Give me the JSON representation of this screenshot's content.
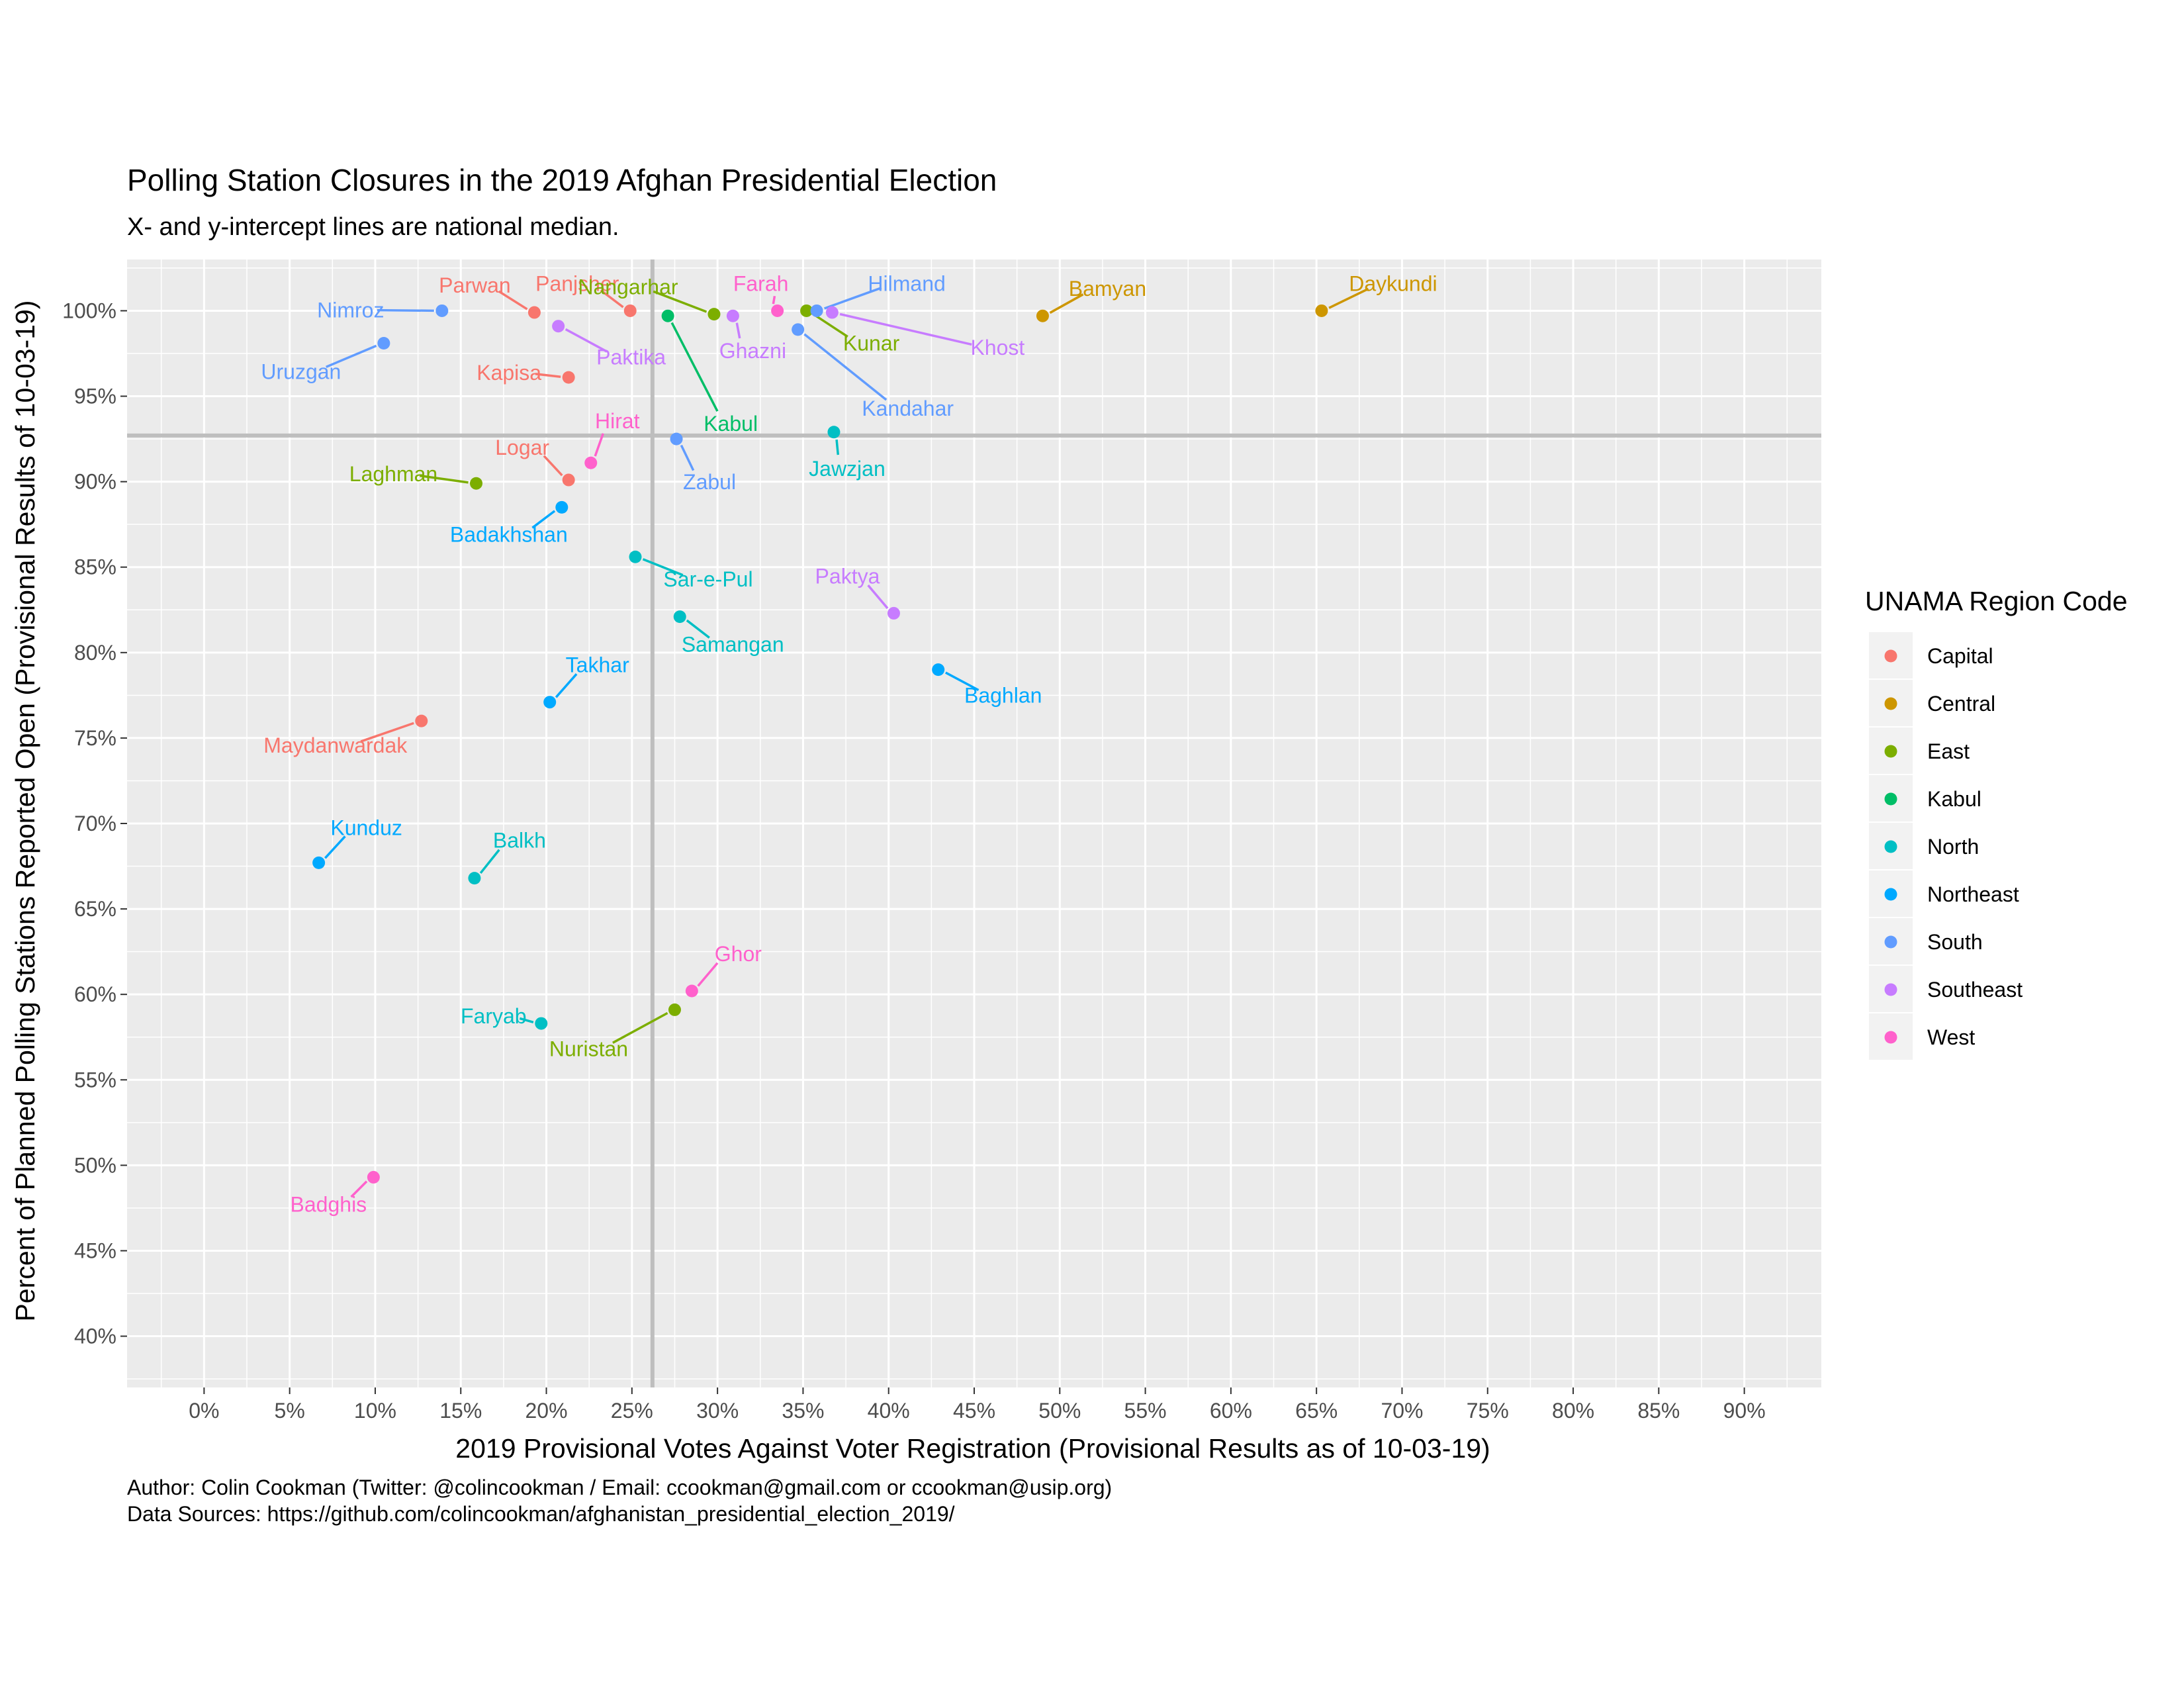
{
  "chart_data": {
    "type": "scatter",
    "title": "Polling Station Closures in the 2019 Afghan Presidential Election",
    "subtitle": "X- and y-intercept lines are national median.",
    "xlabel": "2019 Provisional Votes Against Voter Registration (Provisional Results as of 10-03-19)",
    "ylabel": "Percent of Planned Polling Stations Reported Open (Provisional Results of 10-03-19)",
    "xlim": [
      -0.045,
      0.945
    ],
    "ylim": [
      0.37,
      1.03
    ],
    "x_ticks": [
      0,
      0.05,
      0.1,
      0.15,
      0.2,
      0.25,
      0.3,
      0.35,
      0.4,
      0.45,
      0.5,
      0.55,
      0.6,
      0.65,
      0.7,
      0.75,
      0.8,
      0.85,
      0.9
    ],
    "x_tick_labels": [
      "0%",
      "5%",
      "10%",
      "15%",
      "20%",
      "25%",
      "30%",
      "35%",
      "40%",
      "45%",
      "50%",
      "55%",
      "60%",
      "65%",
      "70%",
      "75%",
      "80%",
      "85%",
      "90%"
    ],
    "y_ticks": [
      0.4,
      0.45,
      0.5,
      0.55,
      0.6,
      0.65,
      0.7,
      0.75,
      0.8,
      0.85,
      0.9,
      0.95,
      1.0
    ],
    "y_tick_labels": [
      "40%",
      "45%",
      "50%",
      "55%",
      "60%",
      "65%",
      "70%",
      "75%",
      "80%",
      "85%",
      "90%",
      "95%",
      "100%"
    ],
    "median_x": 0.262,
    "median_y": 0.927,
    "grid": true,
    "legend_title": "UNAMA Region Code",
    "legend_position": "right",
    "regions": [
      {
        "name": "Capital",
        "color": "#F8766D"
      },
      {
        "name": "Central",
        "color": "#CD9600"
      },
      {
        "name": "East",
        "color": "#7CAE00"
      },
      {
        "name": "Kabul",
        "color": "#00BE67"
      },
      {
        "name": "North",
        "color": "#00BFC4"
      },
      {
        "name": "Northeast",
        "color": "#00A9FF"
      },
      {
        "name": "South",
        "color": "#619CFF"
      },
      {
        "name": "Southeast",
        "color": "#C77CFF"
      },
      {
        "name": "West",
        "color": "#FF61CC"
      }
    ],
    "points": [
      {
        "label": "Parwan",
        "region": "Capital",
        "x": 0.193,
        "y": 0.999
      },
      {
        "label": "Panjsher",
        "region": "Capital",
        "x": 0.249,
        "y": 1.0
      },
      {
        "label": "Kapisa",
        "region": "Capital",
        "x": 0.213,
        "y": 0.961
      },
      {
        "label": "Logar",
        "region": "Capital",
        "x": 0.213,
        "y": 0.901
      },
      {
        "label": "Maydanwardak",
        "region": "Capital",
        "x": 0.127,
        "y": 0.76
      },
      {
        "label": "Bamyan",
        "region": "Central",
        "x": 0.49,
        "y": 0.997
      },
      {
        "label": "Daykundi",
        "region": "Central",
        "x": 0.653,
        "y": 1.0
      },
      {
        "label": "Nangarhar",
        "region": "East",
        "x": 0.298,
        "y": 0.998
      },
      {
        "label": "Kunar",
        "region": "East",
        "x": 0.352,
        "y": 1.0
      },
      {
        "label": "Laghman",
        "region": "East",
        "x": 0.159,
        "y": 0.899
      },
      {
        "label": "Nuristan",
        "region": "East",
        "x": 0.275,
        "y": 0.591
      },
      {
        "label": "Kabul",
        "region": "Kabul",
        "x": 0.271,
        "y": 0.997
      },
      {
        "label": "Jawzjan",
        "region": "North",
        "x": 0.368,
        "y": 0.929
      },
      {
        "label": "Sar-e-Pul",
        "region": "North",
        "x": 0.252,
        "y": 0.856
      },
      {
        "label": "Samangan",
        "region": "North",
        "x": 0.278,
        "y": 0.821
      },
      {
        "label": "Balkh",
        "region": "North",
        "x": 0.158,
        "y": 0.668
      },
      {
        "label": "Faryab",
        "region": "North",
        "x": 0.197,
        "y": 0.583
      },
      {
        "label": "Badakhshan",
        "region": "Northeast",
        "x": 0.209,
        "y": 0.885
      },
      {
        "label": "Takhar",
        "region": "Northeast",
        "x": 0.202,
        "y": 0.771
      },
      {
        "label": "Baghlan",
        "region": "Northeast",
        "x": 0.429,
        "y": 0.79
      },
      {
        "label": "Kunduz",
        "region": "Northeast",
        "x": 0.067,
        "y": 0.677
      },
      {
        "label": "Nimroz",
        "region": "South",
        "x": 0.139,
        "y": 1.0
      },
      {
        "label": "Uruzgan",
        "region": "South",
        "x": 0.105,
        "y": 0.981
      },
      {
        "label": "Hilmand",
        "region": "South",
        "x": 0.358,
        "y": 1.0
      },
      {
        "label": "Kandahar",
        "region": "South",
        "x": 0.347,
        "y": 0.989
      },
      {
        "label": "Zabul",
        "region": "South",
        "x": 0.276,
        "y": 0.925
      },
      {
        "label": "Paktika",
        "region": "Southeast",
        "x": 0.207,
        "y": 0.991
      },
      {
        "label": "Ghazni",
        "region": "Southeast",
        "x": 0.309,
        "y": 0.997
      },
      {
        "label": "Khost",
        "region": "Southeast",
        "x": 0.367,
        "y": 0.999
      },
      {
        "label": "Paktya",
        "region": "Southeast",
        "x": 0.403,
        "y": 0.823
      },
      {
        "label": "Farah",
        "region": "West",
        "x": 0.335,
        "y": 1.0
      },
      {
        "label": "Hirat",
        "region": "West",
        "x": 0.226,
        "y": 0.911
      },
      {
        "label": "Ghor",
        "region": "West",
        "x": 0.285,
        "y": 0.602
      },
      {
        "label": "Badghis",
        "region": "West",
        "x": 0.099,
        "y": 0.493
      }
    ]
  },
  "caption": {
    "author": "Author: Colin Cookman (Twitter: @colincookman / Email: ccookman@gmail.com or ccookman@usip.org)",
    "sources": "Data Sources: https://github.com/colincookman/afghanistan_presidential_election_2019/"
  }
}
